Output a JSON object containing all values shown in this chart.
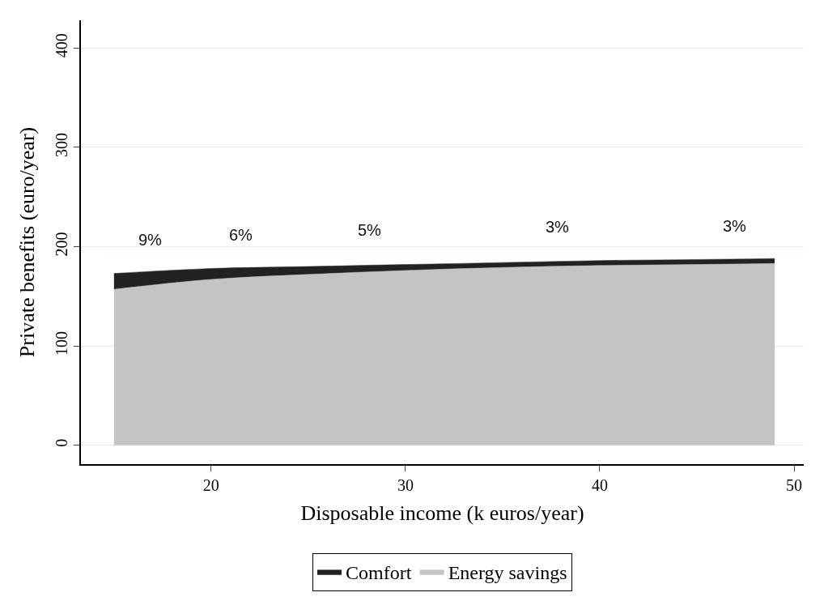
{
  "chart_data": {
    "type": "area",
    "stacked": true,
    "xlabel": "Disposable income (k euros/year)",
    "ylabel": "Private benefits (euro/year)",
    "x": [
      15,
      20,
      25,
      30,
      35,
      40,
      45,
      49
    ],
    "series": [
      {
        "name": "Energy savings",
        "color": "#c4c4c4",
        "values": [
          157,
          167,
          172,
          176,
          179,
          181,
          182,
          183
        ]
      },
      {
        "name": "Comfort",
        "color": "#222222",
        "values": [
          16,
          11,
          8,
          6,
          5,
          5,
          5,
          5
        ]
      }
    ],
    "xlim": [
      13.3,
      50.5
    ],
    "ylim": [
      -19,
      428
    ],
    "xticks": [
      20,
      30,
      40,
      50
    ],
    "yticks": [
      0,
      100,
      200,
      300,
      400
    ],
    "grid": "y",
    "legend": "bottom",
    "annotations": [
      "9%",
      "6%",
      "5%",
      "3%",
      "3%"
    ]
  }
}
